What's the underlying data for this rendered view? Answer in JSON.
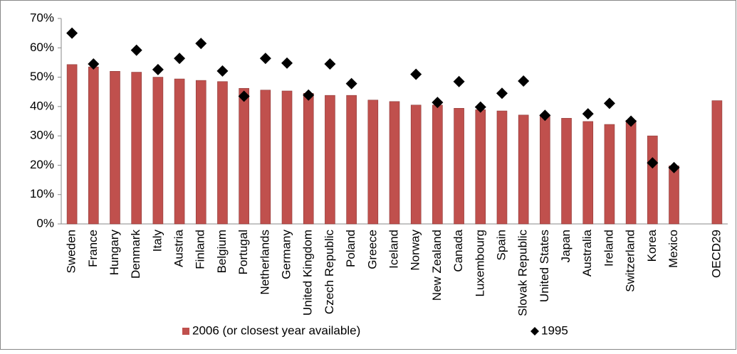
{
  "chart_data": {
    "type": "bar",
    "categories": [
      "Sweden",
      "France",
      "Hungary",
      "Denmark",
      "Italy",
      "Austria",
      "Finland",
      "Belgium",
      "Portugal",
      "Netherlands",
      "Germany",
      "United Kingdom",
      "Czech Republic",
      "Poland",
      "Greece",
      "Iceland",
      "Norway",
      "New Zealand",
      "Canada",
      "Luxembourg",
      "Spain",
      "Slovak Republic",
      "United States",
      "Japan",
      "Australia",
      "Ireland",
      "Switzerland",
      "Korea",
      "Mexico",
      null,
      "OECD29"
    ],
    "series": [
      {
        "name": "2006 (or closest year available)",
        "type": "bar",
        "color": "#c0504d",
        "values": [
          54.3,
          53.5,
          52,
          51.7,
          50,
          49.4,
          48.9,
          48.5,
          46.2,
          45.6,
          45.3,
          44.5,
          43.8,
          43.8,
          42.2,
          41.7,
          40.5,
          40.5,
          39.4,
          38.9,
          38.5,
          37.1,
          37,
          36,
          34.9,
          33.9,
          35.3,
          30,
          19.8,
          null,
          42
        ]
      },
      {
        "name": "1995",
        "type": "scatter",
        "color": "#000000",
        "values": [
          65,
          54.5,
          null,
          59.2,
          52.6,
          56.4,
          61.5,
          52.1,
          43.5,
          56.4,
          54.8,
          43.9,
          54.5,
          47.8,
          null,
          null,
          51,
          41.4,
          48.5,
          39.8,
          44.5,
          48.7,
          37,
          null,
          37.5,
          41.1,
          35,
          20.8,
          19.2,
          null,
          null
        ]
      }
    ],
    "ylim": [
      0,
      70
    ],
    "yticks": [
      {
        "value": 0,
        "label": "0%"
      },
      {
        "value": 10,
        "label": "10%"
      },
      {
        "value": 20,
        "label": "20%"
      },
      {
        "value": 30,
        "label": "30%"
      },
      {
        "value": 40,
        "label": "40%"
      },
      {
        "value": 50,
        "label": "50%"
      },
      {
        "value": 60,
        "label": "60%"
      },
      {
        "value": 70,
        "label": "70%"
      }
    ],
    "legend": "bottom"
  }
}
